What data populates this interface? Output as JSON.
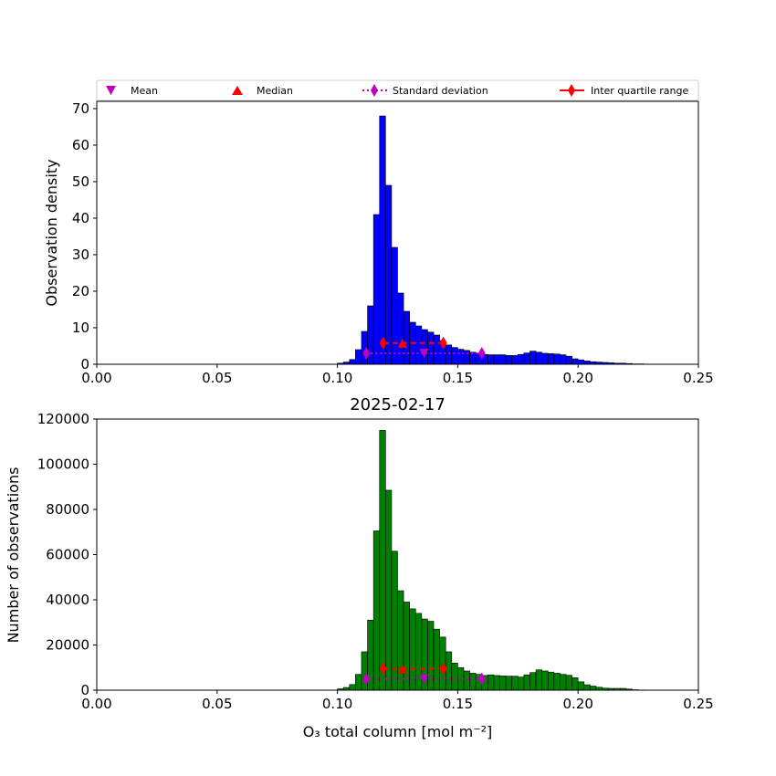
{
  "legend": {
    "items": [
      {
        "label": "Mean",
        "color": "#c000c0",
        "marker": "triangle-down"
      },
      {
        "label": "Median",
        "color": "#ff0000",
        "marker": "triangle-up"
      },
      {
        "label": "Standard deviation",
        "color": "#c000c0",
        "marker": "diamond-dotted-line"
      },
      {
        "label": "Inter quartile range",
        "color": "#ff0000",
        "marker": "diamond-dashed-line"
      }
    ]
  },
  "chart_data": [
    {
      "type": "bar",
      "title": "",
      "xlabel": "",
      "ylabel": "Observation density",
      "xlim": [
        0.0,
        0.25
      ],
      "ylim": [
        0,
        72
      ],
      "xticks": [
        "0.00",
        "0.05",
        "0.10",
        "0.15",
        "0.20",
        "0.25"
      ],
      "yticks": [
        "0",
        "10",
        "20",
        "30",
        "40",
        "50",
        "60",
        "70"
      ],
      "bar_color": "#0000ff",
      "bin_width": 0.0025,
      "bin_starts": [
        0.1,
        0.1025,
        0.105,
        0.1075,
        0.11,
        0.1125,
        0.115,
        0.1175,
        0.12,
        0.1225,
        0.125,
        0.1275,
        0.13,
        0.1325,
        0.135,
        0.1375,
        0.14,
        0.1425,
        0.145,
        0.1475,
        0.15,
        0.1525,
        0.155,
        0.1575,
        0.16,
        0.1625,
        0.165,
        0.1675,
        0.17,
        0.1725,
        0.175,
        0.1775,
        0.18,
        0.1825,
        0.185,
        0.1875,
        0.19,
        0.1925,
        0.195,
        0.1975,
        0.2,
        0.2025,
        0.205,
        0.2075,
        0.21,
        0.2125,
        0.215,
        0.2175,
        0.22,
        0.2225,
        0.225
      ],
      "values": [
        0.3,
        0.6,
        1.3,
        4,
        9,
        16,
        41,
        68,
        49,
        32,
        19.5,
        14.5,
        11.5,
        10.5,
        9.5,
        8.8,
        8,
        6.5,
        5.3,
        4.6,
        4.1,
        3.8,
        3.3,
        2.9,
        2.7,
        2.6,
        2.6,
        2.6,
        2.4,
        2.4,
        2.7,
        3.1,
        3.6,
        3.3,
        3.0,
        2.9,
        2.8,
        2.6,
        2.2,
        1.5,
        1.2,
        0.9,
        0.7,
        0.6,
        0.5,
        0.4,
        0.3,
        0.3,
        0.2,
        0.1,
        0.1
      ],
      "stats": {
        "mean": {
          "x": 0.136,
          "y": 3.0
        },
        "median": {
          "x": 0.127,
          "y": 5.8
        },
        "std_dev": {
          "x": [
            0.112,
            0.16
          ],
          "y": 3.0
        },
        "iqr": {
          "x": [
            0.119,
            0.144
          ],
          "y": 5.8
        }
      }
    },
    {
      "type": "bar",
      "title": "2025-02-17",
      "xlabel": "O₃ total column [mol m⁻²]",
      "ylabel": "Number of observations",
      "xlim": [
        0.0,
        0.25
      ],
      "ylim": [
        0,
        120000
      ],
      "xticks": [
        "0.00",
        "0.05",
        "0.10",
        "0.15",
        "0.20",
        "0.25"
      ],
      "yticks": [
        "0",
        "20000",
        "40000",
        "60000",
        "80000",
        "100000",
        "120000"
      ],
      "bar_color": "#008000",
      "bin_width": 0.0025,
      "bin_starts": [
        0.1,
        0.1025,
        0.105,
        0.1075,
        0.11,
        0.1125,
        0.115,
        0.1175,
        0.12,
        0.1225,
        0.125,
        0.1275,
        0.13,
        0.1325,
        0.135,
        0.1375,
        0.14,
        0.1425,
        0.145,
        0.1475,
        0.15,
        0.1525,
        0.155,
        0.1575,
        0.16,
        0.1625,
        0.165,
        0.1675,
        0.17,
        0.1725,
        0.175,
        0.1775,
        0.18,
        0.1825,
        0.185,
        0.1875,
        0.19,
        0.1925,
        0.195,
        0.1975,
        0.2,
        0.2025,
        0.205,
        0.2075,
        0.21,
        0.2125,
        0.215,
        0.2175,
        0.22,
        0.2225,
        0.225
      ],
      "values": [
        600,
        1200,
        2500,
        7000,
        17000,
        31000,
        70500,
        115000,
        88500,
        61500,
        44000,
        39000,
        36000,
        34000,
        31500,
        30500,
        27000,
        23500,
        17000,
        12000,
        10000,
        8500,
        7500,
        7000,
        6500,
        6800,
        6500,
        6300,
        6200,
        6200,
        5800,
        6800,
        7800,
        9000,
        8500,
        8000,
        7500,
        7000,
        6600,
        5500,
        3700,
        2400,
        1800,
        1300,
        900,
        800,
        800,
        800,
        500,
        200,
        100
      ],
      "stats": {
        "mean": {
          "x": 0.136,
          "y": 5000
        },
        "median": {
          "x": 0.127,
          "y": 9500
        },
        "std_dev": {
          "x": [
            0.112,
            0.16
          ],
          "y": 5000
        },
        "iqr": {
          "x": [
            0.119,
            0.144
          ],
          "y": 9500
        }
      }
    }
  ]
}
